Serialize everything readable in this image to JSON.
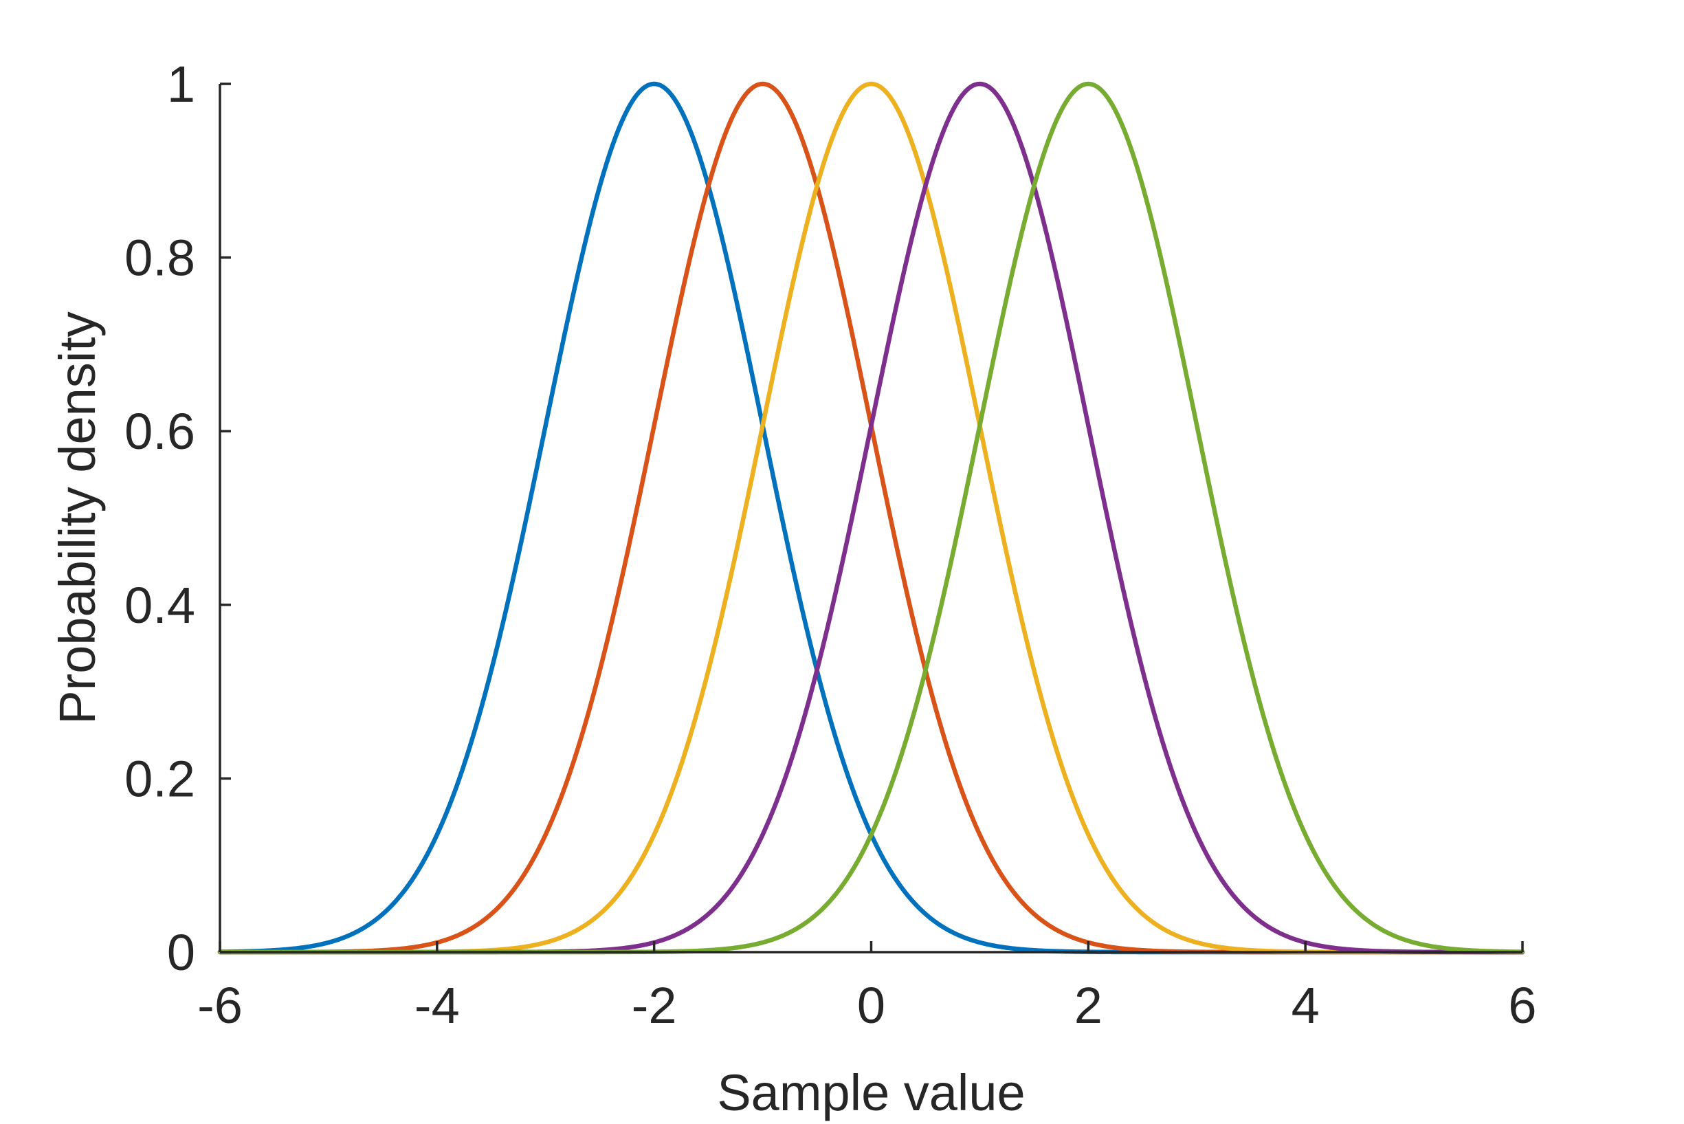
{
  "chart_data": {
    "type": "line",
    "title": "",
    "xlabel": "Sample value",
    "ylabel": "Probability density",
    "xlim": [
      -6,
      6
    ],
    "ylim": [
      0,
      1
    ],
    "xticks": [
      -6,
      -4,
      -2,
      0,
      2,
      4,
      6
    ],
    "xtick_labels": [
      "-6",
      "-4",
      "-2",
      "0",
      "2",
      "4",
      "6"
    ],
    "yticks": [
      0,
      0.2,
      0.4,
      0.6,
      0.8,
      1
    ],
    "ytick_labels": [
      "0",
      "0.2",
      "0.4",
      "0.6",
      "0.8",
      "1"
    ],
    "grid": false,
    "legend": "none",
    "function": "gaussian, unnormalized peak 1",
    "series": [
      {
        "mean": -2,
        "sigma": 1,
        "peak": 1,
        "color": "#0072BD"
      },
      {
        "mean": -1,
        "sigma": 1,
        "peak": 1,
        "color": "#D95319"
      },
      {
        "mean": 0,
        "sigma": 1,
        "peak": 1,
        "color": "#EDB120"
      },
      {
        "mean": 1,
        "sigma": 1,
        "peak": 1,
        "color": "#7E2F8E"
      },
      {
        "mean": 2,
        "sigma": 1,
        "peak": 1,
        "color": "#77AC30"
      }
    ]
  }
}
